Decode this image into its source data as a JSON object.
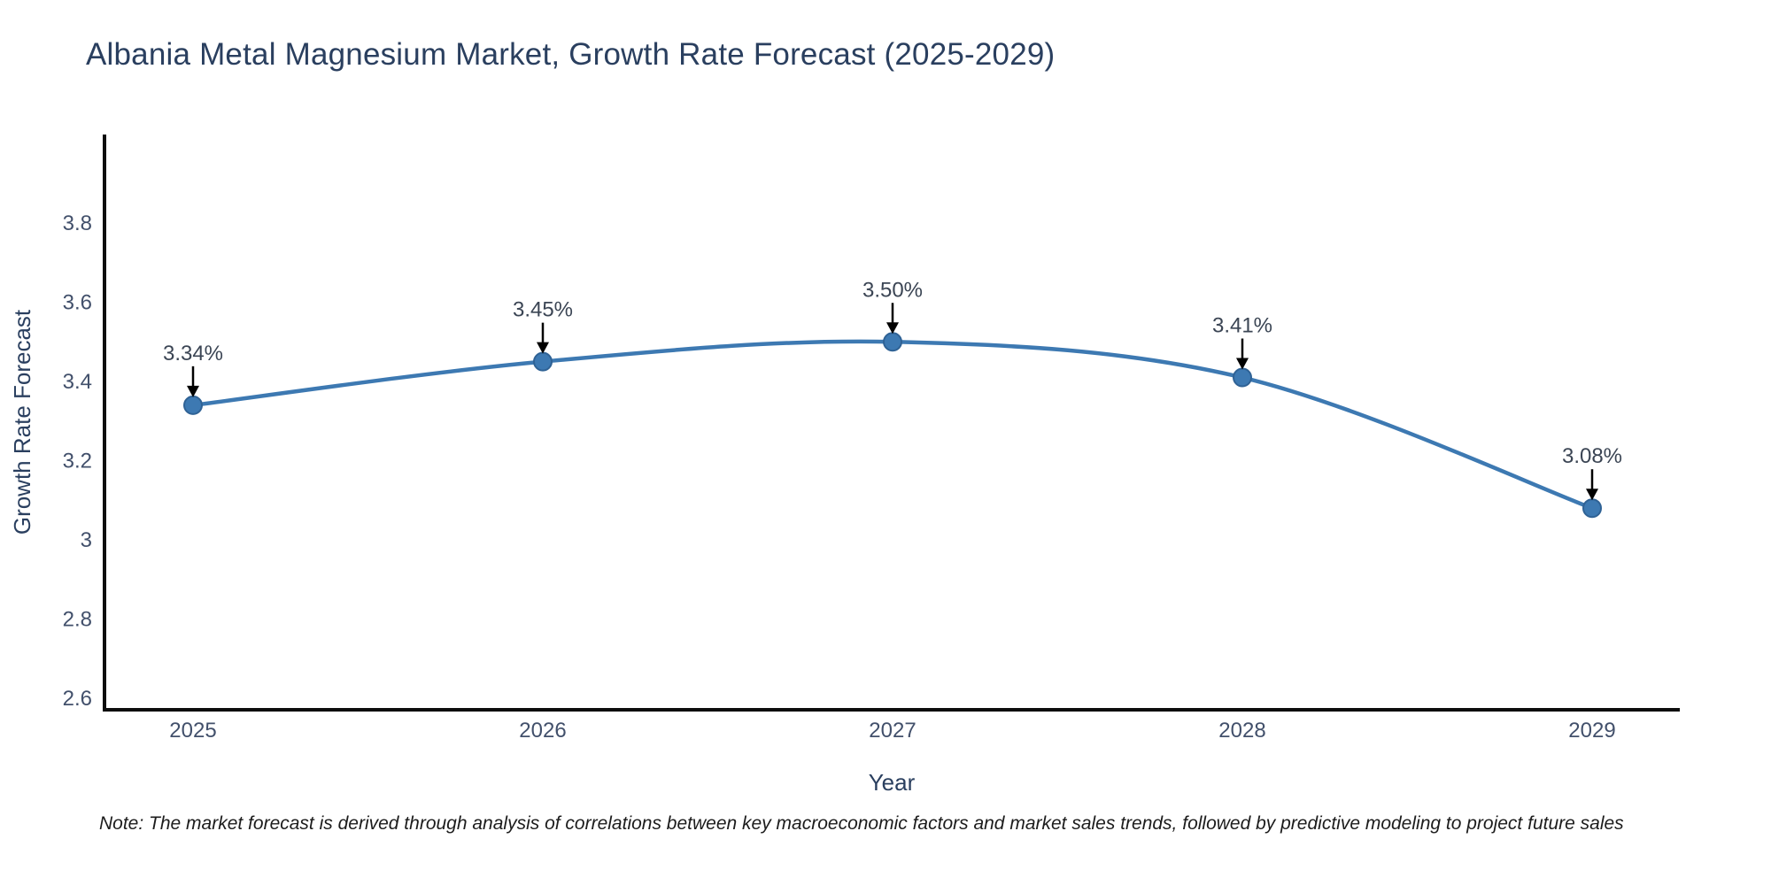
{
  "note": "Note: The market forecast is derived through analysis of correlations between key macroeconomic factors and market sales trends, followed by predictive modeling to project future sales",
  "chart_data": {
    "type": "line",
    "title": "Albania Metal Magnesium Market, Growth Rate Forecast (2025-2029)",
    "x": [
      2025,
      2026,
      2027,
      2028,
      2029
    ],
    "series": [
      {
        "name": "Growth Rate Forecast",
        "values": [
          3.34,
          3.45,
          3.5,
          3.41,
          3.08
        ]
      }
    ],
    "point_labels": [
      "3.34%",
      "3.45%",
      "3.50%",
      "3.41%",
      "3.08%"
    ],
    "xlabel": "Year",
    "ylabel": "Growth Rate Forecast",
    "xticks": {
      "values": [
        2025,
        2026,
        2027,
        2028,
        2029
      ],
      "labels": [
        "2025",
        "2026",
        "2027",
        "2028",
        "2029"
      ]
    },
    "yticks": {
      "values": [
        2.6,
        2.8,
        3.0,
        3.2,
        3.4,
        3.6,
        3.8
      ],
      "labels": [
        "2.6",
        "2.8",
        "3",
        "3.2",
        "3.4",
        "3.6",
        "3.8"
      ]
    },
    "ylim": [
      2.57,
      4.02
    ],
    "line_shape": "spline",
    "grid": false,
    "legend": "none",
    "annotation_arrows": true,
    "colors": {
      "line": "#3d79b2",
      "marker_fill": "#3d79b2",
      "marker_edge": "#2f6295",
      "axis_line": "#0d0d0d",
      "tick_label": "#42506b",
      "axis_title": "#2a3f5f",
      "annotation_text": "#3b4554",
      "arrow": "#000000",
      "title": "#2a3f5f",
      "note": "#1c1c1c",
      "background": "#ffffff"
    }
  }
}
